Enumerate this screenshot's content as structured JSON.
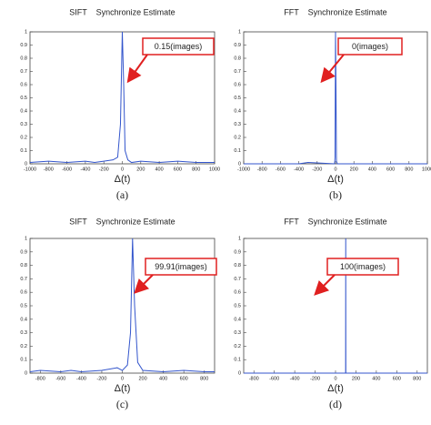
{
  "chart_data": [
    {
      "type": "line",
      "title": "SIFT    Synchronize Estimate",
      "xlabel": "Δ(t)",
      "caption": "(a)",
      "annotation": "0.15(images)",
      "x": [
        -1000,
        -800,
        -600,
        -400,
        -300,
        -200,
        -100,
        -50,
        -20,
        0,
        15,
        30,
        60,
        100,
        200,
        400,
        600,
        800,
        1000
      ],
      "series": [
        {
          "color": "#3355cc",
          "values": [
            0.01,
            0.02,
            0.01,
            0.02,
            0.01,
            0.02,
            0.03,
            0.05,
            0.3,
            1,
            0.6,
            0.1,
            0.03,
            0.01,
            0.02,
            0.01,
            0.02,
            0.01,
            0.01
          ]
        }
      ],
      "xlim": [
        -1000,
        1000
      ],
      "ylim": [
        0,
        1
      ],
      "xticks": [
        -1000,
        -800,
        -600,
        -400,
        -200,
        0,
        200,
        400,
        600,
        800,
        1000
      ],
      "yticks": [
        0,
        0.1,
        0.2,
        0.3,
        0.4,
        0.5,
        0.6,
        0.7,
        0.8,
        0.9,
        1
      ]
    },
    {
      "type": "line",
      "title": "FFT    Synchronize Estimate",
      "xlabel": "Δ(t)",
      "caption": "(b)",
      "annotation": "0(images)",
      "x": [
        -1000,
        -400,
        -300,
        -10,
        -5,
        0,
        5,
        10,
        20,
        1000
      ],
      "series": [
        {
          "color": "#3355cc",
          "values": [
            0,
            0,
            0.01,
            0,
            0.05,
            1,
            0.57,
            0.02,
            0,
            0
          ]
        }
      ],
      "xlim": [
        -1000,
        1000
      ],
      "ylim": [
        0,
        1
      ],
      "xticks": [
        -1000,
        -800,
        -600,
        -400,
        -200,
        0,
        200,
        400,
        600,
        800,
        1000
      ],
      "yticks": [
        0,
        0.1,
        0.2,
        0.3,
        0.4,
        0.5,
        0.6,
        0.7,
        0.8,
        0.9,
        1
      ]
    },
    {
      "type": "line",
      "title": "SIFT    Synchronize Estimate",
      "xlabel": "Δ(t)",
      "caption": "(c)",
      "annotation": "99.91(images)",
      "x": [
        -900,
        -800,
        -600,
        -500,
        -400,
        -200,
        -50,
        0,
        50,
        80,
        100,
        120,
        150,
        200,
        400,
        600,
        800,
        900
      ],
      "series": [
        {
          "color": "#3355cc",
          "values": [
            0.01,
            0.02,
            0.01,
            0.02,
            0.01,
            0.02,
            0.04,
            0.02,
            0.06,
            0.3,
            1,
            0.5,
            0.08,
            0.02,
            0.01,
            0.02,
            0.01,
            0.01
          ]
        }
      ],
      "xlim": [
        -900,
        900
      ],
      "ylim": [
        0,
        1
      ],
      "xticks": [
        -800,
        -600,
        -400,
        -200,
        0,
        200,
        400,
        600,
        800
      ],
      "yticks": [
        0,
        0.1,
        0.2,
        0.3,
        0.4,
        0.5,
        0.6,
        0.7,
        0.8,
        0.9,
        1
      ]
    },
    {
      "type": "line",
      "title": "FFT    Synchronize Estimate",
      "xlabel": "Δ(t)",
      "caption": "(d)",
      "annotation": "100(images)",
      "x": [
        -900,
        99,
        100,
        101,
        900
      ],
      "series": [
        {
          "color": "#3355cc",
          "values": [
            0,
            0,
            1,
            0,
            0
          ]
        }
      ],
      "xlim": [
        -900,
        900
      ],
      "ylim": [
        0,
        1
      ],
      "xticks": [
        -800,
        -600,
        -400,
        -200,
        0,
        200,
        400,
        600,
        800
      ],
      "yticks": [
        0,
        0.1,
        0.2,
        0.3,
        0.4,
        0.5,
        0.6,
        0.7,
        0.8,
        0.9,
        1
      ]
    }
  ]
}
